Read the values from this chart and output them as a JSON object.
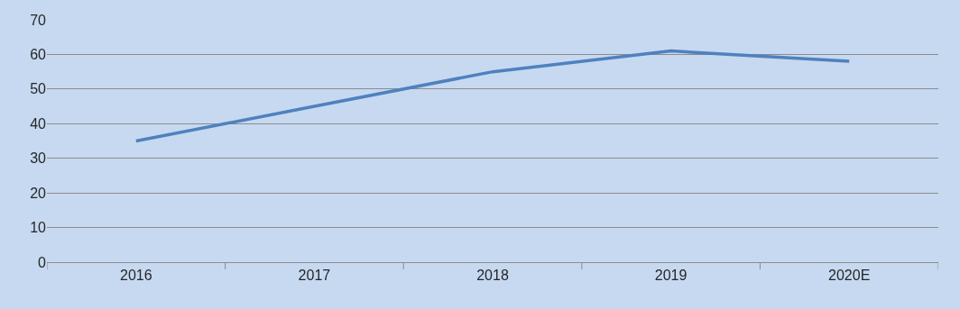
{
  "chart_data": {
    "type": "line",
    "categories": [
      "2016",
      "2017",
      "2018",
      "2019",
      "2020E"
    ],
    "series": [
      {
        "color": "#4f81bd",
        "values": [
          35,
          45,
          55,
          61,
          58
        ]
      }
    ],
    "ylim": [
      0,
      70
    ],
    "yticks": [
      0,
      10,
      20,
      30,
      40,
      50,
      60,
      70
    ],
    "grid": "y",
    "marker": "none",
    "line_style": "solid"
  }
}
